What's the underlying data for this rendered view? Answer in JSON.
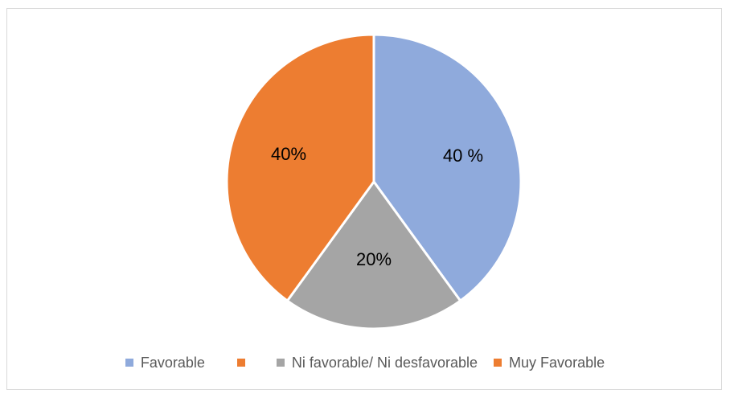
{
  "chart_data": {
    "type": "pie",
    "title": "",
    "slices": [
      {
        "label": "Favorable",
        "value": 40,
        "data_label": "40 %",
        "color": "#8faadc"
      },
      {
        "label": "Ni favorable/ Ni desfavorable",
        "value": 20,
        "data_label": "20%",
        "color": "#a5a5a5"
      },
      {
        "label": "Muy Favorable",
        "value": 40,
        "data_label": "40%",
        "color": "#ed7d31"
      }
    ],
    "legend": {
      "placement": "bottom",
      "entries": [
        {
          "label": "Favorable",
          "color": "#8faadc"
        },
        {
          "label": "",
          "color": "#ed7d31"
        },
        {
          "label": "Ni favorable/ Ni desfavorable",
          "color": "#a5a5a5"
        },
        {
          "label": "Muy Favorable",
          "color": "#ed7d31"
        }
      ]
    }
  }
}
